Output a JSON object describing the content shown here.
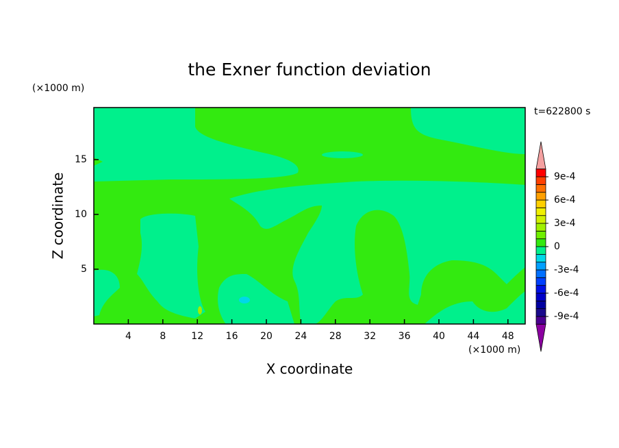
{
  "chart_data": {
    "type": "contour",
    "title": "the Exner function deviation",
    "time_label": "t=622800 s",
    "x_label": "X coordinate",
    "y_label": "Z coordinate",
    "x_unit": "(×1000 m)",
    "y_unit": "(×1000 m)",
    "xlim": [
      0,
      50
    ],
    "ylim": [
      0,
      19.75
    ],
    "xticks": [
      4,
      8,
      12,
      16,
      20,
      24,
      28,
      32,
      36,
      40,
      44,
      48
    ],
    "yticks": [
      5,
      10,
      15
    ],
    "colorbar": {
      "extend": "both",
      "levels": [
        -0.001,
        -0.0009,
        -0.0008,
        -0.0007,
        -0.0006,
        -0.0005,
        -0.0004,
        -0.0003,
        -0.0002,
        -0.0001,
        0,
        0.0001,
        0.0002,
        0.0003,
        0.0004,
        0.0005,
        0.0006,
        0.0007,
        0.0008,
        0.0009,
        0.001
      ],
      "colors": [
        "#8b00a0",
        "#4b0090",
        "#1a0a8c",
        "#0000a0",
        "#0000c8",
        "#0010e6",
        "#0040ff",
        "#0070ff",
        "#00a0ff",
        "#00d8e8",
        "#00f08c",
        "#33ea10",
        "#70f000",
        "#a0f000",
        "#d0f000",
        "#f0f000",
        "#ffd000",
        "#ffa000",
        "#ff7000",
        "#ff4000",
        "#ff0000",
        "#f4a0a0"
      ],
      "ticks": [
        {
          "value": 0.0009,
          "label": "9e-4"
        },
        {
          "value": 0.0006,
          "label": "6e-4"
        },
        {
          "value": 0.0003,
          "label": "3e-4"
        },
        0,
        {
          "value": -0.0003,
          "label": "-3e-4"
        },
        {
          "value": -0.0006,
          "label": "-6e-4"
        },
        {
          "value": -0.0009,
          "label": "-9e-4"
        }
      ]
    }
  }
}
